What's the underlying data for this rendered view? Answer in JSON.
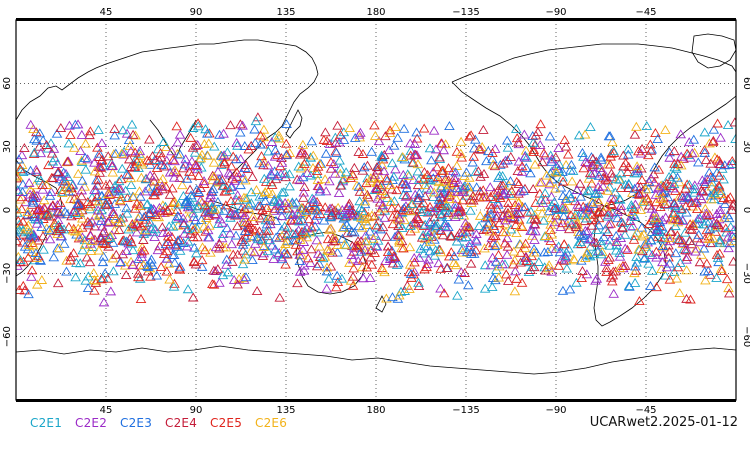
{
  "map": {
    "projection": "cylindrical equidistant",
    "center_longitude": 180,
    "lon_range": [
      0,
      360
    ],
    "lat_range": [
      -90,
      90
    ],
    "gridlines": "dotted",
    "top_ticks": [
      "45",
      "90",
      "135",
      "180",
      "−135",
      "−90",
      "−45"
    ],
    "bottom_ticks": [
      "45",
      "90",
      "135",
      "180",
      "−135",
      "−90",
      "−45"
    ],
    "lat_ticks": [
      "60",
      "30",
      "0",
      "−30",
      "−60"
    ],
    "coastline_color": "#000000",
    "marker_shape": "triangle-icon",
    "observation_lat_band": [
      -45,
      45
    ]
  },
  "legend": [
    {
      "label": "C2E1",
      "color": "#1aa6c9"
    },
    {
      "label": "C2E2",
      "color": "#9b2bc7"
    },
    {
      "label": "C2E3",
      "color": "#1f6fe0"
    },
    {
      "label": "C2E4",
      "color": "#c41d3a"
    },
    {
      "label": "C2E5",
      "color": "#e0241c"
    },
    {
      "label": "C2E6",
      "color": "#f2b21a"
    }
  ],
  "dataset_label": "UCARwet2.2025-01-12"
}
